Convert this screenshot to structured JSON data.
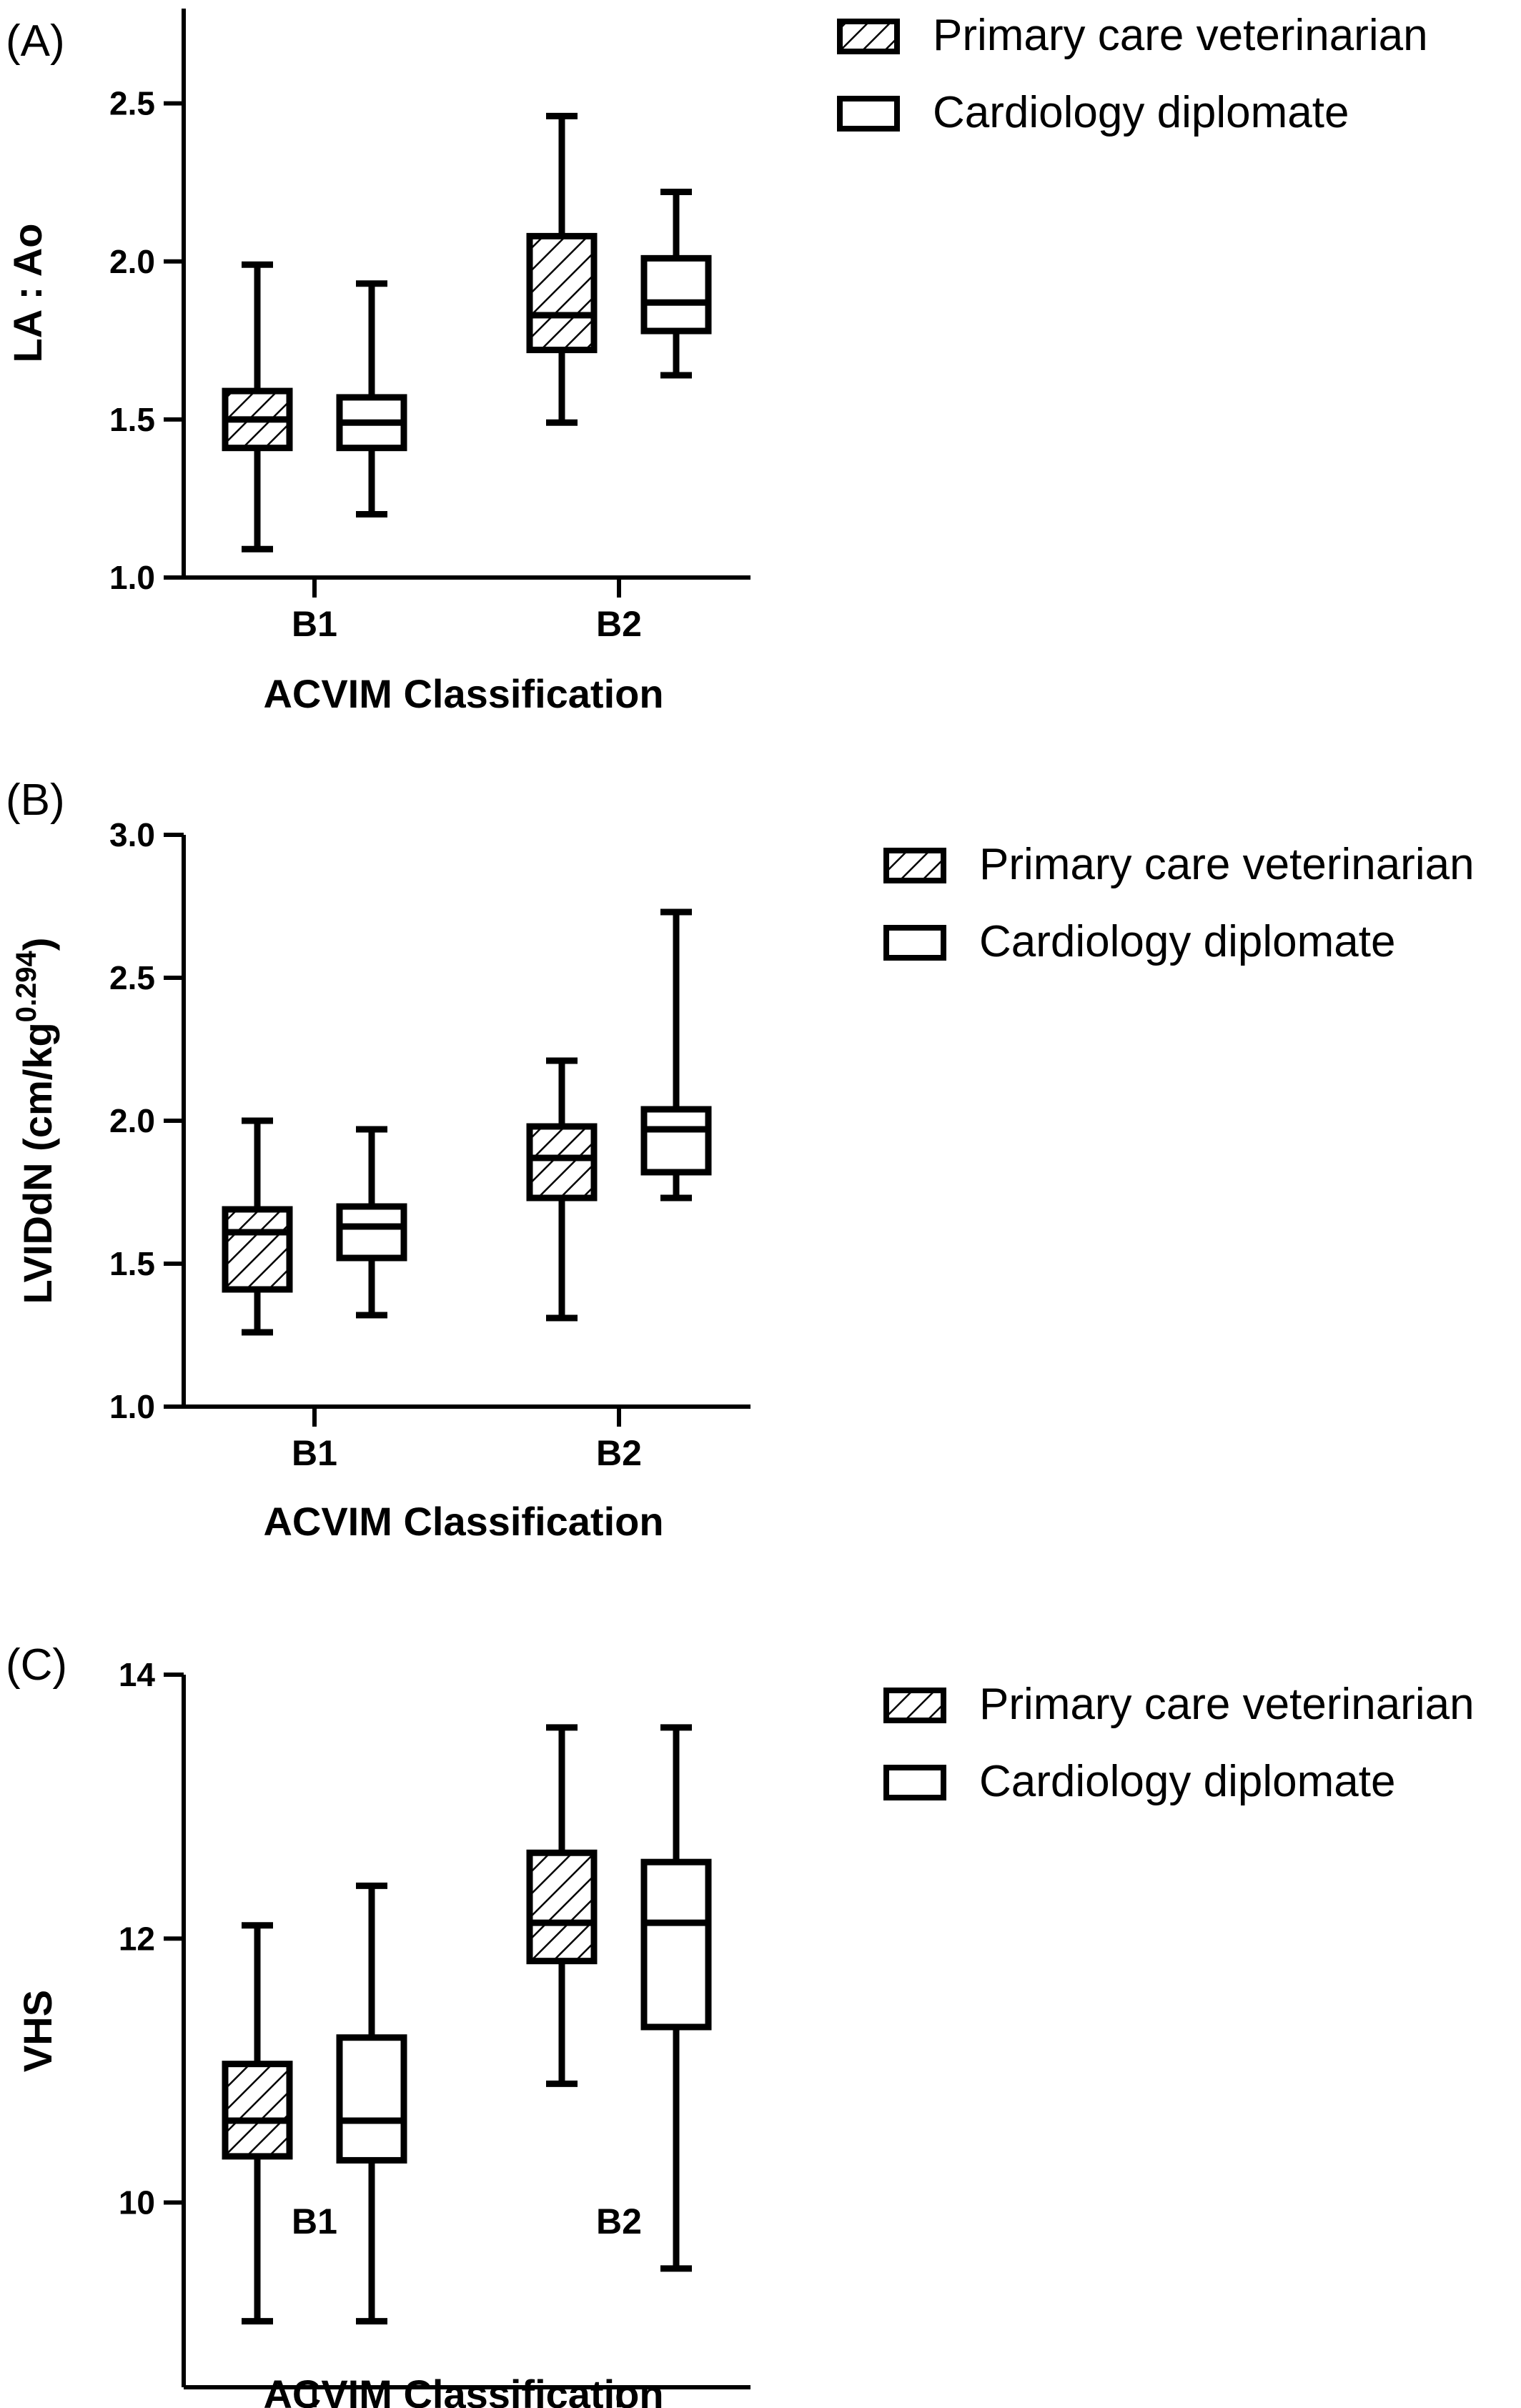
{
  "figure": {
    "colors": {
      "ink": "#000000",
      "background": "#ffffff"
    }
  },
  "legend": {
    "items": [
      {
        "label": "Primary care veterinarian",
        "pattern": "hatched"
      },
      {
        "label": "Cardiology diplomate",
        "pattern": "open"
      }
    ]
  },
  "chart_data": [
    {
      "type": "box",
      "panel_label": "(A)",
      "xlabel": "ACVIM Classification",
      "ylabel": "LA : Ao",
      "ylabel_sup": "",
      "ylim": [
        1.0,
        2.8
      ],
      "yticks": [
        1.0,
        1.5,
        2.0,
        2.5
      ],
      "ytick_labels": [
        "1.0",
        "1.5",
        "2.0",
        "2.5"
      ],
      "categories": [
        "B1",
        "B2"
      ],
      "series": [
        {
          "name": "Primary care veterinarian",
          "pattern": "hatched",
          "boxes": [
            {
              "min": 1.09,
              "q1": 1.41,
              "median": 1.5,
              "q3": 1.59,
              "max": 1.99
            },
            {
              "min": 1.49,
              "q1": 1.72,
              "median": 1.83,
              "q3": 2.08,
              "max": 2.46
            }
          ]
        },
        {
          "name": "Cardiology diplomate",
          "pattern": "open",
          "boxes": [
            {
              "min": 1.2,
              "q1": 1.41,
              "median": 1.49,
              "q3": 1.57,
              "max": 1.93
            },
            {
              "min": 1.64,
              "q1": 1.78,
              "median": 1.87,
              "q3": 2.01,
              "max": 2.22
            }
          ]
        }
      ]
    },
    {
      "type": "box",
      "panel_label": "(B)",
      "xlabel": "ACVIM Classification",
      "ylabel": "LVIDdN (cm/kg",
      "ylabel_sup": "0.294",
      "ylabel_close": ")",
      "ylim": [
        1.0,
        3.0
      ],
      "yticks": [
        1.0,
        1.5,
        2.0,
        2.5,
        3.0
      ],
      "ytick_labels": [
        "1.0",
        "1.5",
        "2.0",
        "2.5",
        "3.0"
      ],
      "categories": [
        "B1",
        "B2"
      ],
      "series": [
        {
          "name": "Primary care veterinarian",
          "pattern": "hatched",
          "boxes": [
            {
              "min": 1.26,
              "q1": 1.41,
              "median": 1.61,
              "q3": 1.69,
              "max": 2.0
            },
            {
              "min": 1.31,
              "q1": 1.73,
              "median": 1.87,
              "q3": 1.98,
              "max": 2.21
            }
          ]
        },
        {
          "name": "Cardiology diplomate",
          "pattern": "open",
          "boxes": [
            {
              "min": 1.32,
              "q1": 1.52,
              "median": 1.63,
              "q3": 1.7,
              "max": 1.97
            },
            {
              "min": 1.73,
              "q1": 1.82,
              "median": 1.97,
              "q3": 2.04,
              "max": 2.73
            }
          ]
        }
      ]
    },
    {
      "type": "box",
      "panel_label": "(C)",
      "xlabel": "ACVIM Classification",
      "ylabel": "VHS",
      "ylabel_sup": "",
      "ylim": [
        8.6,
        14
      ],
      "yticks": [
        10,
        12,
        14
      ],
      "ytick_labels": [
        "10",
        "12",
        "14"
      ],
      "categories": [
        "B1",
        "B2"
      ],
      "series": [
        {
          "name": "Primary care veterinarian",
          "pattern": "hatched",
          "boxes": [
            {
              "min": 9.1,
              "q1": 10.35,
              "median": 10.62,
              "q3": 11.05,
              "max": 12.1
            },
            {
              "min": 10.9,
              "q1": 11.83,
              "median": 12.12,
              "q3": 12.65,
              "max": 13.6
            }
          ]
        },
        {
          "name": "Cardiology diplomate",
          "pattern": "open",
          "boxes": [
            {
              "min": 9.1,
              "q1": 10.32,
              "median": 10.62,
              "q3": 11.25,
              "max": 12.4
            },
            {
              "min": 9.5,
              "q1": 11.33,
              "median": 12.12,
              "q3": 12.58,
              "max": 13.6
            }
          ]
        }
      ]
    }
  ]
}
